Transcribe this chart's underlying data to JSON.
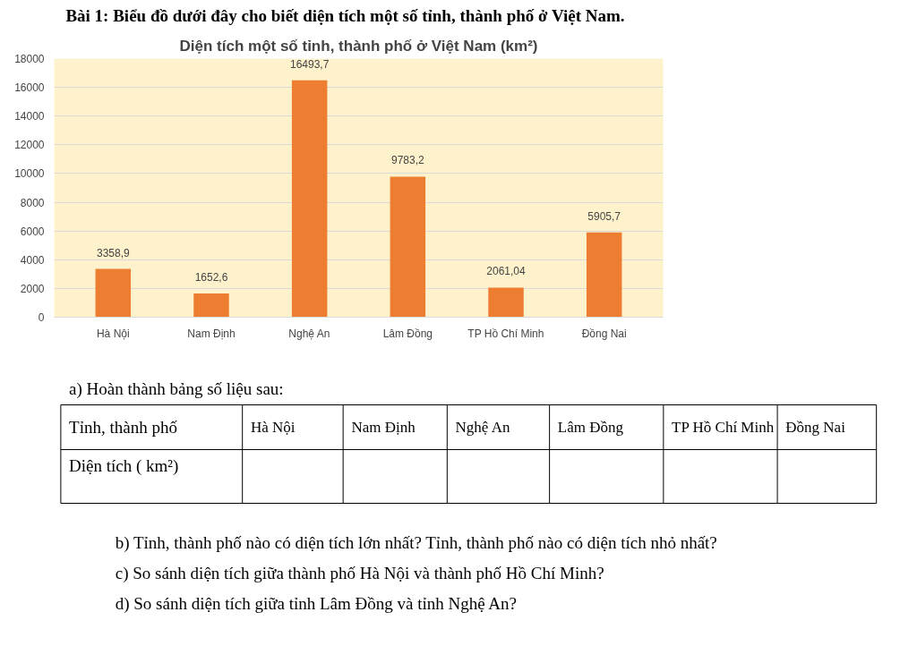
{
  "chart_data": {
    "type": "bar",
    "title": "Diện tích một số tỉnh, thành phố ở Việt Nam (km²)",
    "categories": [
      "Hà Nội",
      "Nam Định",
      "Nghệ An",
      "Lâm Đồng",
      "TP Hồ Chí Minh",
      "Đồng Nai"
    ],
    "values": [
      3358.9,
      1652.6,
      16493.7,
      9783.2,
      2061.04,
      5905.7
    ],
    "value_labels": [
      "3358,9",
      "1652,6",
      "16493,7",
      "9783,2",
      "2061,04",
      "5905,7"
    ],
    "color": "#ed7d31",
    "ylim": [
      0,
      18000
    ],
    "yticks": [
      0,
      2000,
      4000,
      6000,
      8000,
      10000,
      12000,
      14000,
      16000,
      18000
    ],
    "grid": "y",
    "annotations": [
      "Bài 1: Biểu đồ dưới đây cho biết diện tích một số tỉnh, thành phố ở Việt Nam.",
      "a) Hoàn thành bảng số liệu sau:",
      "Tỉnh, thành phố",
      "Hà Nội",
      "Nam Định",
      "Nghệ An",
      "Lâm Đồng",
      "TP Hồ Chí Minh",
      "Đồng Nai",
      "Diện tích ( km²)",
      "b) Tỉnh, thành phố nào có diện tích lớn nhất? Tỉnh, thành phố nào có diện tích nhỏ nhất?",
      "c) So sánh diện tích giữa thành phố Hà Nội và thành phố Hồ Chí Minh?",
      "d) So sánh diện tích giữa tỉnh Lâm Đồng và tỉnh Nghệ An?"
    ]
  }
}
